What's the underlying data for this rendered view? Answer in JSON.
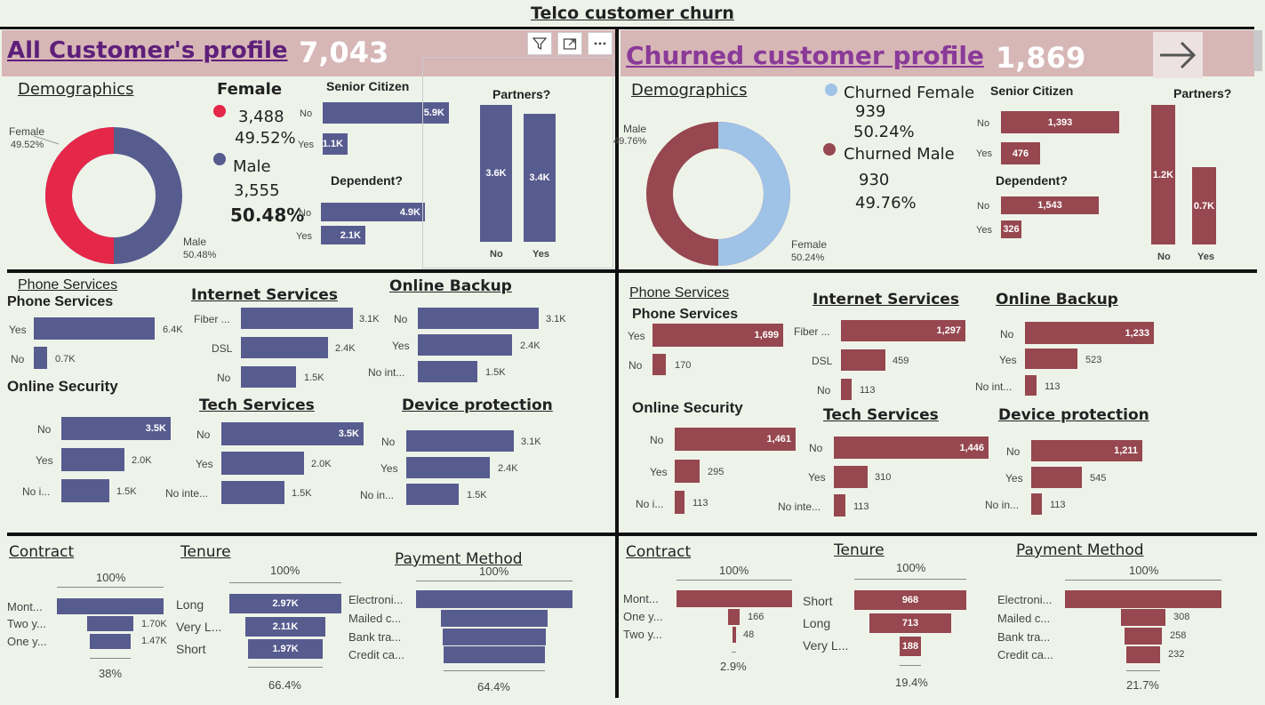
{
  "title": "Telco customer churn",
  "left": {
    "banner_title": "All Customer's profile",
    "banner_num": "7,043",
    "demographics": "Demographics",
    "donut_female_label": "Female",
    "donut_female_pct": "49.52%",
    "donut_male_label": "Male",
    "donut_male_pct": "50.48%",
    "female_title": "Female",
    "female_count": "3,488",
    "female_pct": "49.52%",
    "male_title": "Male",
    "male_count": "3,555",
    "male_pct": "50.48%",
    "senior_title": "Senior Citizen",
    "senior": [
      {
        "label": "No",
        "value": "5.9K"
      },
      {
        "label": "Yes",
        "value": "1.1K"
      }
    ],
    "dependent_title": "Dependent?",
    "dependent": [
      {
        "label": "No",
        "value": "4.9K"
      },
      {
        "label": "Yes",
        "value": "2.1K"
      }
    ],
    "partners_title": "Partners?",
    "partners": [
      {
        "label": "No",
        "value": "3.6K"
      },
      {
        "label": "Yes",
        "value": "3.4K"
      }
    ],
    "phone_header": "Phone Services",
    "phone_title": "Phone Services",
    "phone": [
      {
        "label": "Yes",
        "value": "6.4K"
      },
      {
        "label": "No",
        "value": "0.7K"
      }
    ],
    "internet_title": "Internet Services",
    "internet": [
      {
        "label": "Fiber ...",
        "value": "3.1K"
      },
      {
        "label": "DSL",
        "value": "2.4K"
      },
      {
        "label": "No",
        "value": "1.5K"
      }
    ],
    "backup_title": "Online Backup",
    "backup": [
      {
        "label": "No",
        "value": "3.1K"
      },
      {
        "label": "Yes",
        "value": "2.4K"
      },
      {
        "label": "No int...",
        "value": "1.5K"
      }
    ],
    "security_title": "Online Security",
    "security": [
      {
        "label": "No",
        "value": "3.5K"
      },
      {
        "label": "Yes",
        "value": "2.0K"
      },
      {
        "label": "No i...",
        "value": "1.5K"
      }
    ],
    "tech_title": "Tech  Services",
    "tech": [
      {
        "label": "No",
        "value": "3.5K"
      },
      {
        "label": "Yes",
        "value": "2.0K"
      },
      {
        "label": "No inte...",
        "value": "1.5K"
      }
    ],
    "device_title": "Device protection",
    "device": [
      {
        "label": "No",
        "value": "3.1K"
      },
      {
        "label": "Yes",
        "value": "2.4K"
      },
      {
        "label": "No in...",
        "value": "1.5K"
      }
    ],
    "contract_title": "Contract",
    "contract_top": "100%",
    "contract_bottom": "38%",
    "contract": [
      {
        "label": "Mont...",
        "value": ""
      },
      {
        "label": "Two y...",
        "value": "1.70K"
      },
      {
        "label": "One y...",
        "value": "1.47K"
      }
    ],
    "tenure_title": "Tenure",
    "tenure_top": "100%",
    "tenure_bottom": "66.4%",
    "tenure": [
      {
        "label": "Long",
        "value": "2.97K"
      },
      {
        "label": "Very L...",
        "value": "2.11K"
      },
      {
        "label": "Short",
        "value": "1.97K"
      }
    ],
    "payment_title": "Payment Method",
    "payment_top": "100%",
    "payment_bottom": "64.4%",
    "payment": [
      {
        "label": "Electroni...",
        "value": ""
      },
      {
        "label": "Mailed c...",
        "value": ""
      },
      {
        "label": "Bank tra...",
        "value": ""
      },
      {
        "label": "Credit ca...",
        "value": ""
      }
    ]
  },
  "right": {
    "banner_title": "Churned customer profile",
    "banner_num": "1,869",
    "demographics": "Demographics",
    "donut_male_label": "Male",
    "donut_male_pct": "49.76%",
    "donut_female_label": "Female",
    "donut_female_pct": "50.24%",
    "female_title": "Churned Female",
    "female_count": "939",
    "female_pct": "50.24%",
    "male_title": "Churned Male",
    "male_count": "930",
    "male_pct": "49.76%",
    "senior_title": "Senior Citizen",
    "senior": [
      {
        "label": "No",
        "value": "1,393"
      },
      {
        "label": "Yes",
        "value": "476"
      }
    ],
    "dependent_title": "Dependent?",
    "dependent": [
      {
        "label": "No",
        "value": "1,543"
      },
      {
        "label": "Yes",
        "value": "326"
      }
    ],
    "partners_title": "Partners?",
    "partners": [
      {
        "label": "No",
        "value": "1.2K"
      },
      {
        "label": "Yes",
        "value": "0.7K"
      }
    ],
    "phone_header": "Phone Services",
    "phone_title": "Phone Services",
    "phone": [
      {
        "label": "Yes",
        "value": "1,699"
      },
      {
        "label": "No",
        "value": "170"
      }
    ],
    "internet_title": "Internet Services",
    "internet": [
      {
        "label": "Fiber ...",
        "value": "1,297"
      },
      {
        "label": "DSL",
        "value": "459"
      },
      {
        "label": "No",
        "value": "113"
      }
    ],
    "backup_title": "Online Backup",
    "backup": [
      {
        "label": "No",
        "value": "1,233"
      },
      {
        "label": "Yes",
        "value": "523"
      },
      {
        "label": "No int...",
        "value": "113"
      }
    ],
    "security_title": "Online Security",
    "security": [
      {
        "label": "No",
        "value": "1,461"
      },
      {
        "label": "Yes",
        "value": "295"
      },
      {
        "label": "No i...",
        "value": "113"
      }
    ],
    "tech_title": "Tech  Services",
    "tech": [
      {
        "label": "No",
        "value": "1,446"
      },
      {
        "label": "Yes",
        "value": "310"
      },
      {
        "label": "No inte...",
        "value": "113"
      }
    ],
    "device_title": "Device protection",
    "device": [
      {
        "label": "No",
        "value": "1,211"
      },
      {
        "label": "Yes",
        "value": "545"
      },
      {
        "label": "No in...",
        "value": "113"
      }
    ],
    "contract_title": "Contract",
    "contract_top": "100%",
    "contract_bottom": "2.9%",
    "contract": [
      {
        "label": "Mont...",
        "value": ""
      },
      {
        "label": "One y...",
        "value": "166"
      },
      {
        "label": "Two y...",
        "value": "48"
      }
    ],
    "tenure_title": "Tenure",
    "tenure_top": "100%",
    "tenure_bottom": "19.4%",
    "tenure": [
      {
        "label": "Short",
        "value": "968"
      },
      {
        "label": "Long",
        "value": "713"
      },
      {
        "label": "Very L...",
        "value": "188"
      }
    ],
    "payment_title": "Payment Method",
    "payment_top": "100%",
    "payment_bottom": "21.7%",
    "payment": [
      {
        "label": "Electroni...",
        "value": ""
      },
      {
        "label": "Mailed c...",
        "value": "308"
      },
      {
        "label": "Bank tra...",
        "value": "258"
      },
      {
        "label": "Credit ca...",
        "value": "232"
      }
    ]
  },
  "colors": {
    "bg": "#eef3ea",
    "bar_all": "#575c8f",
    "bar_churn": "#96474f",
    "female_all": "#e5274a",
    "female_churn": "#9fc2e7",
    "banner": "#d7b6b6",
    "banner_title": "#5e1f7a"
  },
  "icons": [
    "filter-icon",
    "focus-mode-icon",
    "more-options-icon",
    "arrow-right-icon"
  ]
}
